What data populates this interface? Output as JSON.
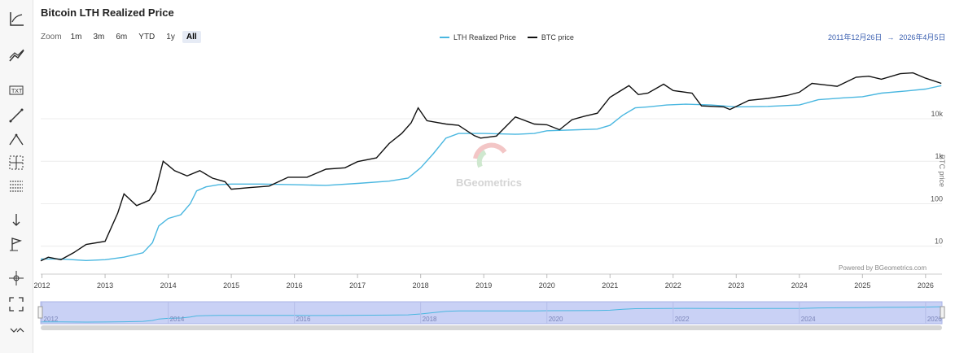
{
  "title": "Bitcoin LTH Realized Price",
  "zoom": {
    "label": "Zoom",
    "options": [
      "1m",
      "3m",
      "6m",
      "YTD",
      "1y",
      "All"
    ],
    "active": "All"
  },
  "date_range": {
    "from": "2011年12月26日",
    "sep": "→",
    "to": "2026年4月5日"
  },
  "watermark": "BGeometrics",
  "credit": "Powered by BGeometrics.com",
  "toolbar_icons": [
    "axis-icon",
    "trend-lines-icon",
    "text-annotation-icon",
    "line-draw-icon",
    "triangle-pattern-icon",
    "crosshair-icon",
    "grid-icon",
    "measure-icon",
    "flag-icon",
    "move-icon",
    "fullscreen-icon",
    "collapse-icon"
  ],
  "colors": {
    "lth": "#4ab7e0",
    "btc": "#111111",
    "navigator": "#c9d1f5"
  },
  "chart_data": {
    "type": "line",
    "yscale": "log",
    "ylabel": "BTC price",
    "ylim": [
      3,
      200000
    ],
    "xlim": [
      2011.98,
      2026.26
    ],
    "y_ticks": [
      {
        "value": 10,
        "label": "10"
      },
      {
        "value": 100,
        "label": "100"
      },
      {
        "value": 1000,
        "label": "1k"
      },
      {
        "value": 10000,
        "label": "10k"
      }
    ],
    "x_ticks": [
      2012,
      2013,
      2014,
      2015,
      2016,
      2017,
      2018,
      2019,
      2020,
      2021,
      2022,
      2023,
      2024,
      2025,
      2026
    ],
    "navigator_ticks": [
      2012,
      2014,
      2016,
      2018,
      2020,
      2022,
      2024,
      2026
    ],
    "series": [
      {
        "name": "LTH Realized Price",
        "points": [
          [
            2011.98,
            5
          ],
          [
            2012.3,
            5
          ],
          [
            2012.7,
            4.6
          ],
          [
            2013.0,
            4.8
          ],
          [
            2013.3,
            5.5
          ],
          [
            2013.6,
            7
          ],
          [
            2013.75,
            12
          ],
          [
            2013.85,
            30
          ],
          [
            2014.0,
            45
          ],
          [
            2014.2,
            55
          ],
          [
            2014.35,
            100
          ],
          [
            2014.45,
            200
          ],
          [
            2014.6,
            250
          ],
          [
            2014.8,
            280
          ],
          [
            2015.0,
            290
          ],
          [
            2015.5,
            290
          ],
          [
            2016.0,
            280
          ],
          [
            2016.5,
            270
          ],
          [
            2017.0,
            300
          ],
          [
            2017.5,
            340
          ],
          [
            2017.8,
            400
          ],
          [
            2018.0,
            700
          ],
          [
            2018.2,
            1500
          ],
          [
            2018.4,
            3500
          ],
          [
            2018.6,
            4500
          ],
          [
            2019.0,
            4500
          ],
          [
            2019.5,
            4300
          ],
          [
            2019.8,
            4500
          ],
          [
            2020.0,
            5200
          ],
          [
            2020.5,
            5500
          ],
          [
            2020.8,
            5700
          ],
          [
            2021.0,
            7000
          ],
          [
            2021.2,
            12000
          ],
          [
            2021.4,
            18000
          ],
          [
            2021.6,
            19000
          ],
          [
            2021.9,
            21000
          ],
          [
            2022.2,
            22000
          ],
          [
            2022.6,
            21000
          ],
          [
            2023.0,
            19000
          ],
          [
            2023.5,
            19500
          ],
          [
            2024.0,
            21000
          ],
          [
            2024.3,
            28000
          ],
          [
            2024.7,
            31000
          ],
          [
            2025.0,
            33000
          ],
          [
            2025.3,
            40000
          ],
          [
            2025.7,
            45000
          ],
          [
            2026.0,
            50000
          ],
          [
            2026.25,
            60000
          ]
        ]
      },
      {
        "name": "BTC price",
        "points": [
          [
            2011.98,
            4.5
          ],
          [
            2012.1,
            5.5
          ],
          [
            2012.3,
            4.8
          ],
          [
            2012.5,
            7
          ],
          [
            2012.7,
            11
          ],
          [
            2013.0,
            13
          ],
          [
            2013.2,
            60
          ],
          [
            2013.3,
            170
          ],
          [
            2013.5,
            90
          ],
          [
            2013.7,
            120
          ],
          [
            2013.8,
            200
          ],
          [
            2013.92,
            1000
          ],
          [
            2014.0,
            800
          ],
          [
            2014.1,
            600
          ],
          [
            2014.3,
            450
          ],
          [
            2014.5,
            600
          ],
          [
            2014.7,
            400
          ],
          [
            2014.9,
            330
          ],
          [
            2015.0,
            220
          ],
          [
            2015.3,
            240
          ],
          [
            2015.6,
            260
          ],
          [
            2015.9,
            420
          ],
          [
            2016.2,
            420
          ],
          [
            2016.5,
            650
          ],
          [
            2016.8,
            700
          ],
          [
            2017.0,
            980
          ],
          [
            2017.3,
            1200
          ],
          [
            2017.5,
            2600
          ],
          [
            2017.7,
            4500
          ],
          [
            2017.85,
            8000
          ],
          [
            2017.96,
            18000
          ],
          [
            2018.1,
            9000
          ],
          [
            2018.4,
            7500
          ],
          [
            2018.6,
            7000
          ],
          [
            2018.85,
            4000
          ],
          [
            2018.95,
            3500
          ],
          [
            2019.2,
            3900
          ],
          [
            2019.5,
            11000
          ],
          [
            2019.8,
            7500
          ],
          [
            2020.0,
            7200
          ],
          [
            2020.2,
            5500
          ],
          [
            2020.4,
            9500
          ],
          [
            2020.6,
            11500
          ],
          [
            2020.8,
            13500
          ],
          [
            2021.0,
            32000
          ],
          [
            2021.3,
            60000
          ],
          [
            2021.45,
            37000
          ],
          [
            2021.6,
            40000
          ],
          [
            2021.85,
            65000
          ],
          [
            2022.0,
            46000
          ],
          [
            2022.3,
            40000
          ],
          [
            2022.45,
            20000
          ],
          [
            2022.8,
            19000
          ],
          [
            2022.9,
            16500
          ],
          [
            2023.2,
            27000
          ],
          [
            2023.5,
            30000
          ],
          [
            2023.8,
            35000
          ],
          [
            2024.0,
            42000
          ],
          [
            2024.2,
            68000
          ],
          [
            2024.6,
            58000
          ],
          [
            2024.9,
            95000
          ],
          [
            2025.1,
            100000
          ],
          [
            2025.3,
            85000
          ],
          [
            2025.6,
            115000
          ],
          [
            2025.8,
            120000
          ],
          [
            2026.0,
            90000
          ],
          [
            2026.25,
            68000
          ]
        ]
      }
    ]
  }
}
